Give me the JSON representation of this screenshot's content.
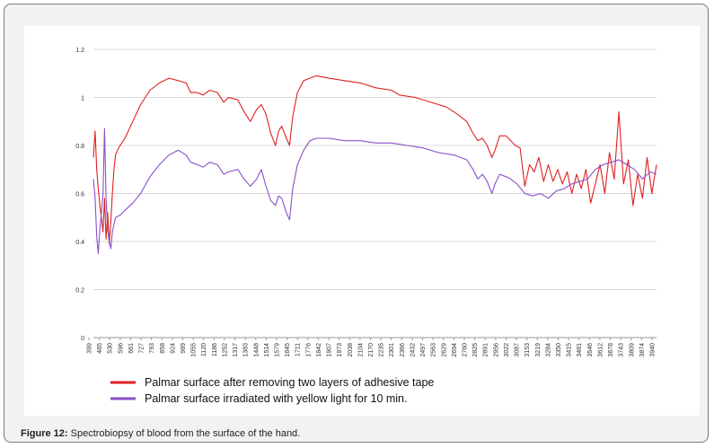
{
  "caption": {
    "label": "Figure 12:",
    "text": " Spectrobiopsy of blood from the surface of the hand."
  },
  "chart_data": {
    "type": "line",
    "title": "",
    "xlabel": "",
    "ylabel": "",
    "ylim": [
      0,
      1.2
    ],
    "yticks": [
      "0",
      "0.2",
      "0.4",
      "0.6",
      "0.8",
      "1",
      "1.2"
    ],
    "xticks": [
      "399",
      "465",
      "530",
      "596",
      "661",
      "727",
      "793",
      "858",
      "924",
      "989",
      "1055",
      "1120",
      "1186",
      "1252",
      "1317",
      "1383",
      "1448",
      "1514",
      "1579",
      "1645",
      "1711",
      "1776",
      "1842",
      "1907",
      "1973",
      "2038",
      "2104",
      "2170",
      "2235",
      "2301",
      "2366",
      "2432",
      "2497",
      "2563",
      "2629",
      "2694",
      "2760",
      "2825",
      "2891",
      "2956",
      "3022",
      "3087",
      "3153",
      "3219",
      "3284",
      "3350",
      "3415",
      "3481",
      "3546",
      "3612",
      "3678",
      "3743",
      "3809",
      "3874",
      "3940"
    ],
    "grid": true,
    "legend": "bottom",
    "series": [
      {
        "name": "Palmar surface after removing two layers of adhesive tape",
        "color": "#e02020",
        "points": [
          [
            399,
            0.75
          ],
          [
            410,
            0.86
          ],
          [
            420,
            0.7
          ],
          [
            430,
            0.62
          ],
          [
            440,
            0.55
          ],
          [
            450,
            0.5
          ],
          [
            460,
            0.44
          ],
          [
            470,
            0.58
          ],
          [
            480,
            0.41
          ],
          [
            490,
            0.52
          ],
          [
            500,
            0.39
          ],
          [
            510,
            0.48
          ],
          [
            520,
            0.6
          ],
          [
            530,
            0.7
          ],
          [
            540,
            0.76
          ],
          [
            560,
            0.79
          ],
          [
            600,
            0.83
          ],
          [
            650,
            0.9
          ],
          [
            700,
            0.97
          ],
          [
            760,
            1.03
          ],
          [
            820,
            1.06
          ],
          [
            880,
            1.08
          ],
          [
            940,
            1.07
          ],
          [
            990,
            1.06
          ],
          [
            1020,
            1.02
          ],
          [
            1060,
            1.02
          ],
          [
            1100,
            1.01
          ],
          [
            1140,
            1.03
          ],
          [
            1190,
            1.02
          ],
          [
            1230,
            0.98
          ],
          [
            1260,
            1.0
          ],
          [
            1320,
            0.99
          ],
          [
            1360,
            0.94
          ],
          [
            1400,
            0.9
          ],
          [
            1440,
            0.95
          ],
          [
            1470,
            0.97
          ],
          [
            1500,
            0.93
          ],
          [
            1530,
            0.85
          ],
          [
            1560,
            0.8
          ],
          [
            1580,
            0.86
          ],
          [
            1600,
            0.88
          ],
          [
            1630,
            0.83
          ],
          [
            1650,
            0.8
          ],
          [
            1670,
            0.92
          ],
          [
            1700,
            1.02
          ],
          [
            1740,
            1.07
          ],
          [
            1780,
            1.08
          ],
          [
            1820,
            1.09
          ],
          [
            1900,
            1.08
          ],
          [
            2000,
            1.07
          ],
          [
            2100,
            1.06
          ],
          [
            2200,
            1.04
          ],
          [
            2300,
            1.03
          ],
          [
            2350,
            1.01
          ],
          [
            2450,
            1.0
          ],
          [
            2550,
            0.98
          ],
          [
            2650,
            0.96
          ],
          [
            2720,
            0.93
          ],
          [
            2780,
            0.9
          ],
          [
            2820,
            0.85
          ],
          [
            2850,
            0.82
          ],
          [
            2880,
            0.83
          ],
          [
            2910,
            0.8
          ],
          [
            2940,
            0.75
          ],
          [
            2960,
            0.78
          ],
          [
            2990,
            0.84
          ],
          [
            3030,
            0.84
          ],
          [
            3060,
            0.82
          ],
          [
            3090,
            0.8
          ],
          [
            3120,
            0.79
          ],
          [
            3150,
            0.63
          ],
          [
            3180,
            0.72
          ],
          [
            3210,
            0.69
          ],
          [
            3240,
            0.75
          ],
          [
            3270,
            0.65
          ],
          [
            3300,
            0.72
          ],
          [
            3330,
            0.65
          ],
          [
            3360,
            0.7
          ],
          [
            3390,
            0.64
          ],
          [
            3420,
            0.69
          ],
          [
            3450,
            0.6
          ],
          [
            3480,
            0.68
          ],
          [
            3510,
            0.62
          ],
          [
            3540,
            0.7
          ],
          [
            3570,
            0.56
          ],
          [
            3600,
            0.64
          ],
          [
            3630,
            0.72
          ],
          [
            3660,
            0.6
          ],
          [
            3690,
            0.77
          ],
          [
            3720,
            0.66
          ],
          [
            3750,
            0.94
          ],
          [
            3780,
            0.64
          ],
          [
            3810,
            0.74
          ],
          [
            3840,
            0.55
          ],
          [
            3870,
            0.68
          ],
          [
            3900,
            0.58
          ],
          [
            3930,
            0.75
          ],
          [
            3960,
            0.6
          ],
          [
            3990,
            0.72
          ]
        ]
      },
      {
        "name": "Palmar surface irradiated with yellow light for 10 min.",
        "color": "#8a50c8",
        "points": [
          [
            399,
            0.66
          ],
          [
            410,
            0.58
          ],
          [
            420,
            0.42
          ],
          [
            430,
            0.35
          ],
          [
            440,
            0.45
          ],
          [
            450,
            0.52
          ],
          [
            460,
            0.6
          ],
          [
            470,
            0.87
          ],
          [
            480,
            0.58
          ],
          [
            490,
            0.45
          ],
          [
            500,
            0.4
          ],
          [
            510,
            0.37
          ],
          [
            520,
            0.44
          ],
          [
            540,
            0.5
          ],
          [
            570,
            0.51
          ],
          [
            600,
            0.53
          ],
          [
            650,
            0.56
          ],
          [
            700,
            0.6
          ],
          [
            760,
            0.67
          ],
          [
            820,
            0.72
          ],
          [
            880,
            0.76
          ],
          [
            940,
            0.78
          ],
          [
            990,
            0.76
          ],
          [
            1020,
            0.73
          ],
          [
            1060,
            0.72
          ],
          [
            1100,
            0.71
          ],
          [
            1140,
            0.73
          ],
          [
            1190,
            0.72
          ],
          [
            1230,
            0.68
          ],
          [
            1260,
            0.69
          ],
          [
            1320,
            0.7
          ],
          [
            1360,
            0.66
          ],
          [
            1400,
            0.63
          ],
          [
            1440,
            0.66
          ],
          [
            1470,
            0.7
          ],
          [
            1500,
            0.63
          ],
          [
            1530,
            0.57
          ],
          [
            1560,
            0.55
          ],
          [
            1580,
            0.59
          ],
          [
            1600,
            0.58
          ],
          [
            1630,
            0.52
          ],
          [
            1650,
            0.49
          ],
          [
            1670,
            0.62
          ],
          [
            1700,
            0.72
          ],
          [
            1740,
            0.78
          ],
          [
            1780,
            0.82
          ],
          [
            1820,
            0.83
          ],
          [
            1900,
            0.83
          ],
          [
            2000,
            0.82
          ],
          [
            2100,
            0.82
          ],
          [
            2200,
            0.81
          ],
          [
            2300,
            0.81
          ],
          [
            2400,
            0.8
          ],
          [
            2500,
            0.79
          ],
          [
            2600,
            0.77
          ],
          [
            2700,
            0.76
          ],
          [
            2780,
            0.74
          ],
          [
            2820,
            0.7
          ],
          [
            2850,
            0.66
          ],
          [
            2880,
            0.68
          ],
          [
            2910,
            0.65
          ],
          [
            2940,
            0.6
          ],
          [
            2960,
            0.64
          ],
          [
            2990,
            0.68
          ],
          [
            3030,
            0.67
          ],
          [
            3060,
            0.66
          ],
          [
            3100,
            0.64
          ],
          [
            3150,
            0.6
          ],
          [
            3200,
            0.59
          ],
          [
            3250,
            0.6
          ],
          [
            3300,
            0.58
          ],
          [
            3350,
            0.61
          ],
          [
            3400,
            0.62
          ],
          [
            3450,
            0.64
          ],
          [
            3500,
            0.65
          ],
          [
            3550,
            0.66
          ],
          [
            3600,
            0.7
          ],
          [
            3650,
            0.72
          ],
          [
            3700,
            0.73
          ],
          [
            3750,
            0.74
          ],
          [
            3800,
            0.72
          ],
          [
            3850,
            0.7
          ],
          [
            3900,
            0.66
          ],
          [
            3950,
            0.69
          ],
          [
            3990,
            0.68
          ]
        ]
      }
    ]
  }
}
